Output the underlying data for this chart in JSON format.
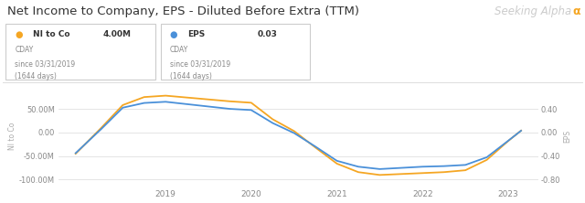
{
  "title": "Net Income to Company, EPS - Diluted Before Extra (TTM)",
  "orange_color": "#F5A623",
  "blue_color": "#4A90D9",
  "background_color": "#FFFFFF",
  "grid_color": "#E0E0E0",
  "ylabel_left": "NI to Co",
  "ylabel_right": "EPS",
  "ylim_left": [
    -115000000,
    100000000
  ],
  "ylim_right": [
    -0.92,
    0.8
  ],
  "yticks_left": [
    50000000,
    0,
    -50000000,
    -100000000
  ],
  "yticks_right": [
    0.4,
    0.0,
    -0.4,
    -0.8
  ],
  "ytick_labels_left": [
    "50.00M",
    "0.00",
    "-50.00M",
    "-100.00M"
  ],
  "ytick_labels_right": [
    "0.40",
    "0.00",
    "-0.40",
    "-0.80"
  ],
  "xticks": [
    2019,
    2020,
    2021,
    2022,
    2023
  ],
  "xlim": [
    2017.75,
    2023.35
  ],
  "ni_x": [
    2017.95,
    2018.25,
    2018.5,
    2018.75,
    2019.0,
    2019.25,
    2019.5,
    2019.75,
    2020.0,
    2020.25,
    2020.5,
    2020.75,
    2021.0,
    2021.25,
    2021.5,
    2021.75,
    2022.0,
    2022.25,
    2022.5,
    2022.75,
    2023.0,
    2023.15
  ],
  "ni_y": [
    -45000000,
    10000000,
    58000000,
    75000000,
    78000000,
    74000000,
    70000000,
    66000000,
    63000000,
    28000000,
    3000000,
    -32000000,
    -66000000,
    -84000000,
    -90000000,
    -88000000,
    -86000000,
    -84000000,
    -80000000,
    -58000000,
    -18000000,
    4000000
  ],
  "eps_x": [
    2017.95,
    2018.25,
    2018.5,
    2018.75,
    2019.0,
    2019.25,
    2019.5,
    2019.75,
    2020.0,
    2020.25,
    2020.5,
    2020.75,
    2021.0,
    2021.25,
    2021.5,
    2021.75,
    2022.0,
    2022.25,
    2022.5,
    2022.75,
    2023.0,
    2023.15
  ],
  "eps_y": [
    -0.35,
    0.06,
    0.42,
    0.5,
    0.52,
    0.48,
    0.44,
    0.4,
    0.38,
    0.16,
    -0.01,
    -0.24,
    -0.48,
    -0.58,
    -0.62,
    -0.6,
    -0.58,
    -0.57,
    -0.55,
    -0.42,
    -0.14,
    0.03
  ],
  "legend1_label": "NI to Co",
  "legend1_value": "4.00M",
  "legend1_sub1": "CDAY",
  "legend1_sub2": "since 03/31/2019",
  "legend1_sub3": "(1644 days)",
  "legend2_label": "EPS",
  "legend2_value": "0.03",
  "legend2_sub1": "CDAY",
  "legend2_sub2": "since 03/31/2019",
  "legend2_sub3": "(1644 days)"
}
